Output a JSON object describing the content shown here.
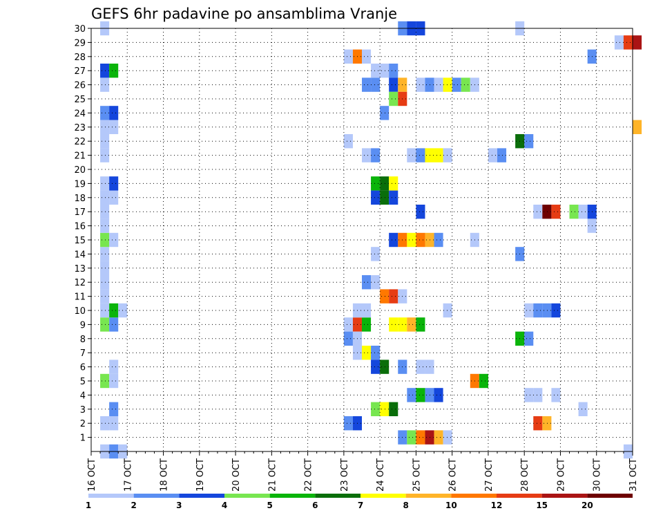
{
  "chart_data": {
    "type": "heatmap",
    "title": "GEFS 6hr padavine po ansamblima Vranje",
    "xlabel": "",
    "ylabel": "",
    "x_ticks": [
      "16 OCT",
      "17 OCT",
      "18 OCT",
      "19 OCT",
      "20 OCT",
      "21 OCT",
      "22 OCT",
      "23 OCT",
      "24 OCT",
      "25 OCT",
      "26 OCT",
      "27 OCT",
      "28 OCT",
      "29 OCT",
      "30 OCT",
      "31 OCT"
    ],
    "y_ticks": [
      1,
      2,
      3,
      4,
      5,
      6,
      7,
      8,
      9,
      10,
      11,
      12,
      13,
      14,
      15,
      16,
      17,
      18,
      19,
      20,
      21,
      22,
      23,
      24,
      25,
      26,
      27,
      28,
      29,
      30
    ],
    "ylim": [
      0,
      30
    ],
    "grid": true,
    "step": "6hr",
    "colorbar": {
      "labels": [
        "1",
        "2",
        "3",
        "4",
        "5",
        "6",
        "7",
        "8",
        "10",
        "12",
        "15",
        "20"
      ],
      "colors": [
        "#b4c8fa",
        "#5a8ef2",
        "#1446dc",
        "#78e650",
        "#0ab40a",
        "#0a6e0a",
        "#ffff00",
        "#ffb428",
        "#ff7800",
        "#e63c14",
        "#aa1414",
        "#6e0000"
      ]
    },
    "cells": [
      {
        "day": "16 OCT",
        "hour": 6,
        "member": 0,
        "cat": 1
      },
      {
        "day": "16 OCT",
        "hour": 12,
        "member": 0,
        "cat": 2
      },
      {
        "day": "16 OCT",
        "hour": 18,
        "member": 0,
        "cat": 1
      },
      {
        "day": "16 OCT",
        "hour": 6,
        "member": 30,
        "cat": 1
      },
      {
        "day": "16 OCT",
        "hour": 6,
        "member": 2,
        "cat": 1
      },
      {
        "day": "16 OCT",
        "hour": 12,
        "member": 2,
        "cat": 1
      },
      {
        "day": "16 OCT",
        "hour": 12,
        "member": 3,
        "cat": 2
      },
      {
        "day": "16 OCT",
        "hour": 6,
        "member": 5,
        "cat": 4
      },
      {
        "day": "16 OCT",
        "hour": 12,
        "member": 5,
        "cat": 1
      },
      {
        "day": "16 OCT",
        "hour": 12,
        "member": 6,
        "cat": 1
      },
      {
        "day": "16 OCT",
        "hour": 6,
        "member": 9,
        "cat": 4
      },
      {
        "day": "16 OCT",
        "hour": 12,
        "member": 9,
        "cat": 2
      },
      {
        "day": "16 OCT",
        "hour": 6,
        "member": 10,
        "cat": 1
      },
      {
        "day": "16 OCT",
        "hour": 12,
        "member": 10,
        "cat": 5
      },
      {
        "day": "16 OCT",
        "hour": 18,
        "member": 10,
        "cat": 1
      },
      {
        "day": "16 OCT",
        "hour": 6,
        "member": 11,
        "cat": 1
      },
      {
        "day": "16 OCT",
        "hour": 6,
        "member": 12,
        "cat": 1
      },
      {
        "day": "16 OCT",
        "hour": 6,
        "member": 13,
        "cat": 1
      },
      {
        "day": "16 OCT",
        "hour": 6,
        "member": 14,
        "cat": 1
      },
      {
        "day": "16 OCT",
        "hour": 6,
        "member": 15,
        "cat": 4
      },
      {
        "day": "16 OCT",
        "hour": 12,
        "member": 15,
        "cat": 1
      },
      {
        "day": "16 OCT",
        "hour": 6,
        "member": 16,
        "cat": 1
      },
      {
        "day": "16 OCT",
        "hour": 6,
        "member": 17,
        "cat": 1
      },
      {
        "day": "16 OCT",
        "hour": 6,
        "member": 18,
        "cat": 1
      },
      {
        "day": "16 OCT",
        "hour": 12,
        "member": 18,
        "cat": 1
      },
      {
        "day": "16 OCT",
        "hour": 6,
        "member": 19,
        "cat": 1
      },
      {
        "day": "16 OCT",
        "hour": 12,
        "member": 19,
        "cat": 3
      },
      {
        "day": "16 OCT",
        "hour": 6,
        "member": 21,
        "cat": 1
      },
      {
        "day": "16 OCT",
        "hour": 6,
        "member": 22,
        "cat": 1
      },
      {
        "day": "16 OCT",
        "hour": 6,
        "member": 23,
        "cat": 1
      },
      {
        "day": "16 OCT",
        "hour": 12,
        "member": 23,
        "cat": 1
      },
      {
        "day": "16 OCT",
        "hour": 6,
        "member": 24,
        "cat": 2
      },
      {
        "day": "16 OCT",
        "hour": 12,
        "member": 24,
        "cat": 3
      },
      {
        "day": "16 OCT",
        "hour": 6,
        "member": 26,
        "cat": 1
      },
      {
        "day": "16 OCT",
        "hour": 6,
        "member": 27,
        "cat": 3
      },
      {
        "day": "16 OCT",
        "hour": 12,
        "member": 27,
        "cat": 5
      },
      {
        "day": "23 OCT",
        "hour": 0,
        "member": 28,
        "cat": 1
      },
      {
        "day": "23 OCT",
        "hour": 6,
        "member": 28,
        "cat": 9
      },
      {
        "day": "23 OCT",
        "hour": 12,
        "member": 28,
        "cat": 1
      },
      {
        "day": "23 OCT",
        "hour": 0,
        "member": 22,
        "cat": 1
      },
      {
        "day": "23 OCT",
        "hour": 0,
        "member": 9,
        "cat": 1
      },
      {
        "day": "23 OCT",
        "hour": 6,
        "member": 9,
        "cat": 10
      },
      {
        "day": "23 OCT",
        "hour": 12,
        "member": 9,
        "cat": 5
      },
      {
        "day": "23 OCT",
        "hour": 6,
        "member": 10,
        "cat": 1
      },
      {
        "day": "23 OCT",
        "hour": 12,
        "member": 10,
        "cat": 1
      },
      {
        "day": "23 OCT",
        "hour": 0,
        "member": 8,
        "cat": 2
      },
      {
        "day": "23 OCT",
        "hour": 6,
        "member": 8,
        "cat": 1
      },
      {
        "day": "23 OCT",
        "hour": 6,
        "member": 7,
        "cat": 1
      },
      {
        "day": "23 OCT",
        "hour": 12,
        "member": 7,
        "cat": 7
      },
      {
        "day": "23 OCT",
        "hour": 18,
        "member": 7,
        "cat": 2
      },
      {
        "day": "23 OCT",
        "hour": 0,
        "member": 2,
        "cat": 2
      },
      {
        "day": "23 OCT",
        "hour": 6,
        "member": 2,
        "cat": 3
      },
      {
        "day": "23 OCT",
        "hour": 12,
        "member": 26,
        "cat": 2
      },
      {
        "day": "23 OCT",
        "hour": 18,
        "member": 26,
        "cat": 2
      },
      {
        "day": "23 OCT",
        "hour": 12,
        "member": 21,
        "cat": 1
      },
      {
        "day": "23 OCT",
        "hour": 18,
        "member": 21,
        "cat": 2
      },
      {
        "day": "23 OCT",
        "hour": 12,
        "member": 12,
        "cat": 2
      },
      {
        "day": "23 OCT",
        "hour": 18,
        "member": 12,
        "cat": 1
      },
      {
        "day": "23 OCT",
        "hour": 18,
        "member": 27,
        "cat": 1
      },
      {
        "day": "24 OCT",
        "hour": 0,
        "member": 27,
        "cat": 1
      },
      {
        "day": "24 OCT",
        "hour": 6,
        "member": 27,
        "cat": 2
      },
      {
        "day": "23 OCT",
        "hour": 18,
        "member": 19,
        "cat": 5
      },
      {
        "day": "24 OCT",
        "hour": 0,
        "member": 19,
        "cat": 6
      },
      {
        "day": "24 OCT",
        "hour": 6,
        "member": 19,
        "cat": 7
      },
      {
        "day": "23 OCT",
        "hour": 18,
        "member": 18,
        "cat": 3
      },
      {
        "day": "24 OCT",
        "hour": 0,
        "member": 18,
        "cat": 6
      },
      {
        "day": "24 OCT",
        "hour": 6,
        "member": 18,
        "cat": 3
      },
      {
        "day": "23 OCT",
        "hour": 18,
        "member": 14,
        "cat": 1
      },
      {
        "day": "23 OCT",
        "hour": 18,
        "member": 6,
        "cat": 3
      },
      {
        "day": "24 OCT",
        "hour": 0,
        "member": 6,
        "cat": 6
      },
      {
        "day": "23 OCT",
        "hour": 18,
        "member": 3,
        "cat": 4
      },
      {
        "day": "24 OCT",
        "hour": 0,
        "member": 3,
        "cat": 7
      },
      {
        "day": "24 OCT",
        "hour": 6,
        "member": 3,
        "cat": 6
      },
      {
        "day": "24 OCT",
        "hour": 0,
        "member": 24,
        "cat": 2
      },
      {
        "day": "24 OCT",
        "hour": 0,
        "member": 11,
        "cat": 9
      },
      {
        "day": "24 OCT",
        "hour": 6,
        "member": 11,
        "cat": 10
      },
      {
        "day": "24 OCT",
        "hour": 12,
        "member": 11,
        "cat": 1
      },
      {
        "day": "24 OCT",
        "hour": 6,
        "member": 9,
        "cat": 7
      },
      {
        "day": "24 OCT",
        "hour": 12,
        "member": 9,
        "cat": 7
      },
      {
        "day": "24 OCT",
        "hour": 18,
        "member": 9,
        "cat": 8
      },
      {
        "day": "25 OCT",
        "hour": 0,
        "member": 9,
        "cat": 5
      },
      {
        "day": "24 OCT",
        "hour": 6,
        "member": 26,
        "cat": 3
      },
      {
        "day": "24 OCT",
        "hour": 12,
        "member": 26,
        "cat": 8
      },
      {
        "day": "24 OCT",
        "hour": 6,
        "member": 25,
        "cat": 4
      },
      {
        "day": "24 OCT",
        "hour": 12,
        "member": 25,
        "cat": 10
      },
      {
        "day": "24 OCT",
        "hour": 6,
        "member": 15,
        "cat": 3
      },
      {
        "day": "24 OCT",
        "hour": 12,
        "member": 15,
        "cat": 9
      },
      {
        "day": "24 OCT",
        "hour": 18,
        "member": 15,
        "cat": 7
      },
      {
        "day": "25 OCT",
        "hour": 0,
        "member": 15,
        "cat": 9
      },
      {
        "day": "25 OCT",
        "hour": 6,
        "member": 15,
        "cat": 8
      },
      {
        "day": "25 OCT",
        "hour": 12,
        "member": 15,
        "cat": 2
      },
      {
        "day": "24 OCT",
        "hour": 12,
        "member": 30,
        "cat": 2
      },
      {
        "day": "24 OCT",
        "hour": 18,
        "member": 30,
        "cat": 3
      },
      {
        "day": "25 OCT",
        "hour": 0,
        "member": 30,
        "cat": 3
      },
      {
        "day": "24 OCT",
        "hour": 12,
        "member": 6,
        "cat": 2
      },
      {
        "day": "24 OCT",
        "hour": 12,
        "member": 1,
        "cat": 2
      },
      {
        "day": "24 OCT",
        "hour": 18,
        "member": 1,
        "cat": 4
      },
      {
        "day": "25 OCT",
        "hour": 0,
        "member": 1,
        "cat": 9
      },
      {
        "day": "25 OCT",
        "hour": 6,
        "member": 1,
        "cat": 11
      },
      {
        "day": "25 OCT",
        "hour": 12,
        "member": 1,
        "cat": 8
      },
      {
        "day": "25 OCT",
        "hour": 18,
        "member": 1,
        "cat": 1
      },
      {
        "day": "24 OCT",
        "hour": 18,
        "member": 21,
        "cat": 1
      },
      {
        "day": "25 OCT",
        "hour": 0,
        "member": 21,
        "cat": 2
      },
      {
        "day": "25 OCT",
        "hour": 6,
        "member": 21,
        "cat": 7
      },
      {
        "day": "25 OCT",
        "hour": 12,
        "member": 21,
        "cat": 7
      },
      {
        "day": "24 OCT",
        "hour": 18,
        "member": 4,
        "cat": 2
      },
      {
        "day": "25 OCT",
        "hour": 0,
        "member": 4,
        "cat": 5
      },
      {
        "day": "25 OCT",
        "hour": 6,
        "member": 4,
        "cat": 2
      },
      {
        "day": "25 OCT",
        "hour": 12,
        "member": 4,
        "cat": 3
      },
      {
        "day": "25 OCT",
        "hour": 0,
        "member": 6,
        "cat": 1
      },
      {
        "day": "25 OCT",
        "hour": 6,
        "member": 6,
        "cat": 1
      },
      {
        "day": "25 OCT",
        "hour": 0,
        "member": 17,
        "cat": 3
      },
      {
        "day": "25 OCT",
        "hour": 0,
        "member": 26,
        "cat": 1
      },
      {
        "day": "25 OCT",
        "hour": 6,
        "member": 26,
        "cat": 2
      },
      {
        "day": "25 OCT",
        "hour": 12,
        "member": 26,
        "cat": 1
      },
      {
        "day": "25 OCT",
        "hour": 18,
        "member": 26,
        "cat": 7
      },
      {
        "day": "26 OCT",
        "hour": 0,
        "member": 26,
        "cat": 2
      },
      {
        "day": "26 OCT",
        "hour": 6,
        "member": 26,
        "cat": 4
      },
      {
        "day": "26 OCT",
        "hour": 12,
        "member": 26,
        "cat": 1
      },
      {
        "day": "25 OCT",
        "hour": 18,
        "member": 10,
        "cat": 1
      },
      {
        "day": "25 OCT",
        "hour": 18,
        "member": 21,
        "cat": 1
      },
      {
        "day": "26 OCT",
        "hour": 12,
        "member": 15,
        "cat": 1
      },
      {
        "day": "26 OCT",
        "hour": 12,
        "member": 5,
        "cat": 9
      },
      {
        "day": "26 OCT",
        "hour": 18,
        "member": 5,
        "cat": 5
      },
      {
        "day": "27 OCT",
        "hour": 0,
        "member": 21,
        "cat": 1
      },
      {
        "day": "27 OCT",
        "hour": 6,
        "member": 21,
        "cat": 2
      },
      {
        "day": "27 OCT",
        "hour": 18,
        "member": 30,
        "cat": 1
      },
      {
        "day": "27 OCT",
        "hour": 18,
        "member": 22,
        "cat": 6
      },
      {
        "day": "28 OCT",
        "hour": 0,
        "member": 22,
        "cat": 2
      },
      {
        "day": "27 OCT",
        "hour": 18,
        "member": 14,
        "cat": 2
      },
      {
        "day": "27 OCT",
        "hour": 18,
        "member": 8,
        "cat": 5
      },
      {
        "day": "28 OCT",
        "hour": 0,
        "member": 8,
        "cat": 2
      },
      {
        "day": "28 OCT",
        "hour": 0,
        "member": 10,
        "cat": 1
      },
      {
        "day": "28 OCT",
        "hour": 6,
        "member": 10,
        "cat": 2
      },
      {
        "day": "28 OCT",
        "hour": 12,
        "member": 10,
        "cat": 2
      },
      {
        "day": "28 OCT",
        "hour": 18,
        "member": 10,
        "cat": 3
      },
      {
        "day": "28 OCT",
        "hour": 0,
        "member": 4,
        "cat": 1
      },
      {
        "day": "28 OCT",
        "hour": 6,
        "member": 4,
        "cat": 1
      },
      {
        "day": "28 OCT",
        "hour": 18,
        "member": 4,
        "cat": 1
      },
      {
        "day": "28 OCT",
        "hour": 6,
        "member": 17,
        "cat": 1
      },
      {
        "day": "28 OCT",
        "hour": 12,
        "member": 17,
        "cat": 12
      },
      {
        "day": "28 OCT",
        "hour": 18,
        "member": 17,
        "cat": 10
      },
      {
        "day": "29 OCT",
        "hour": 6,
        "member": 17,
        "cat": 4
      },
      {
        "day": "29 OCT",
        "hour": 12,
        "member": 17,
        "cat": 1
      },
      {
        "day": "29 OCT",
        "hour": 18,
        "member": 17,
        "cat": 3
      },
      {
        "day": "28 OCT",
        "hour": 6,
        "member": 2,
        "cat": 10
      },
      {
        "day": "28 OCT",
        "hour": 12,
        "member": 2,
        "cat": 8
      },
      {
        "day": "29 OCT",
        "hour": 12,
        "member": 3,
        "cat": 1
      },
      {
        "day": "29 OCT",
        "hour": 18,
        "member": 16,
        "cat": 1
      },
      {
        "day": "29 OCT",
        "hour": 18,
        "member": 28,
        "cat": 2
      },
      {
        "day": "30 OCT",
        "hour": 12,
        "member": 29,
        "cat": 1
      },
      {
        "day": "30 OCT",
        "hour": 18,
        "member": 29,
        "cat": 10
      },
      {
        "day": "31 OCT",
        "hour": 0,
        "member": 29,
        "cat": 11
      },
      {
        "day": "31 OCT",
        "hour": 0,
        "member": 23,
        "cat": 8
      },
      {
        "day": "30 OCT",
        "hour": 18,
        "member": 0,
        "cat": 1
      }
    ]
  }
}
